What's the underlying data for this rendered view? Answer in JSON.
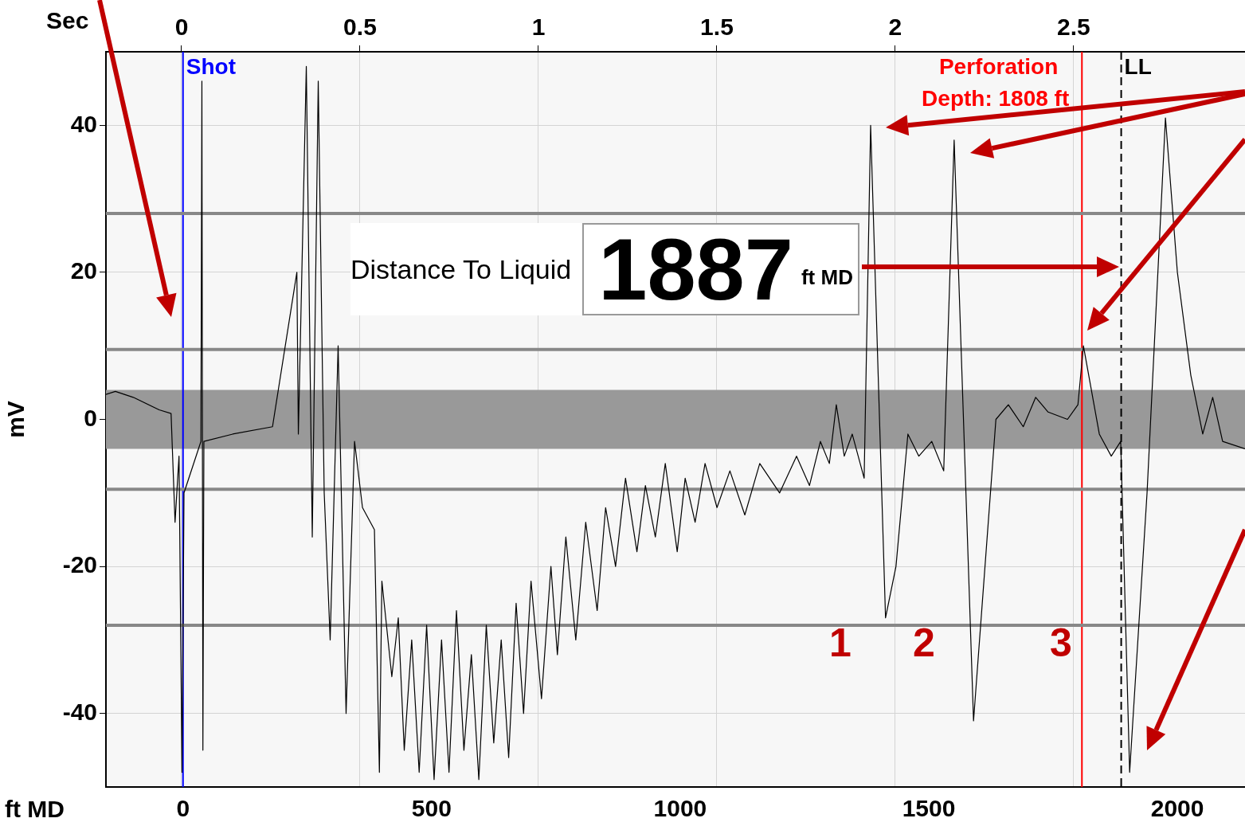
{
  "chart_data": {
    "type": "line",
    "xlabel": "ft MD",
    "ylabel": "mV",
    "x2label": "Sec",
    "xlim": [
      -155,
      2136
    ],
    "xticks": [
      0,
      500,
      1000,
      1500,
      2000
    ],
    "x2lim": [
      -0.212,
      2.98
    ],
    "x2ticks": [
      0,
      0.5,
      1,
      1.5,
      2,
      2.5
    ],
    "ylim": [
      -50,
      50
    ],
    "yticks": [
      -40,
      -20,
      0,
      20,
      40
    ],
    "grid": true,
    "legend": false,
    "marker": "none",
    "line_style": "solid",
    "series": [
      {
        "color": "#000000",
        "x": [
          -155,
          -136,
          -100,
          -48,
          -24,
          -16,
          -8,
          -2,
          2,
          36,
          38,
          40,
          42,
          100,
          180,
          229,
          232,
          248,
          260,
          272,
          284,
          296,
          312,
          328,
          345,
          361,
          385,
          395,
          400,
          420,
          433,
          445,
          460,
          475,
          490,
          505,
          520,
          535,
          550,
          565,
          580,
          595,
          610,
          625,
          640,
          655,
          670,
          685,
          700,
          721,
          740,
          753,
          770,
          790,
          810,
          833,
          850,
          870,
          890,
          913,
          930,
          950,
          970,
          994,
          1010,
          1030,
          1050,
          1074,
          1100,
          1130,
          1160,
          1200,
          1234,
          1260,
          1282,
          1300,
          1314,
          1330,
          1346,
          1370,
          1383,
          1413,
          1434,
          1458,
          1480,
          1506,
          1530,
          1551,
          1590,
          1635,
          1660,
          1690,
          1715,
          1740,
          1779,
          1800,
          1811,
          1843,
          1867,
          1886,
          1904,
          1939,
          1976,
          2000,
          2027,
          2051,
          2071,
          2091,
          2136
        ],
        "values": [
          3.4,
          3.8,
          3,
          1.3,
          0.8,
          -14,
          -5,
          -48,
          -10,
          -3,
          46,
          -45,
          -3,
          -2,
          -1,
          20,
          -2,
          48,
          -16,
          46,
          -10,
          -30,
          10,
          -40,
          -3,
          -12,
          -15,
          -48,
          -22,
          -35,
          -27,
          -45,
          -30,
          -48,
          -28,
          -49,
          -30,
          -48,
          -26,
          -45,
          -32,
          -49,
          -28,
          -44,
          -30,
          -46,
          -25,
          -40,
          -22,
          -38,
          -20,
          -32,
          -16,
          -30,
          -14,
          -26,
          -12,
          -20,
          -8,
          -18,
          -9,
          -16,
          -6,
          -18,
          -8,
          -14,
          -6,
          -12,
          -7,
          -13,
          -6,
          -10,
          -5,
          -9,
          -3,
          -6,
          2,
          -5,
          -2,
          -8,
          40,
          -27,
          -20,
          -2,
          -5,
          -3,
          -7,
          38,
          -41,
          0,
          2,
          -1,
          3,
          1,
          0,
          2,
          10,
          -2,
          -5,
          -3,
          -48,
          -10,
          41,
          20,
          6,
          -2,
          3,
          -3,
          -4
        ]
      }
    ],
    "ref_lines": [
      {
        "axis": "x",
        "value": 0,
        "label": "Shot",
        "color": "#0000ff"
      },
      {
        "axis": "x",
        "value": 1808,
        "label": "Perforation Depth: 1808 ft",
        "color": "#ff0000"
      },
      {
        "axis": "x",
        "value": 1887,
        "label": "LL",
        "color": "#000000",
        "line_style": "dashed"
      },
      {
        "axis": "y",
        "value": 28,
        "color": "#888888"
      },
      {
        "axis": "y",
        "value": 9.5,
        "color": "#888888"
      },
      {
        "axis": "y",
        "value": -9.5,
        "color": "#888888"
      },
      {
        "axis": "y",
        "value": -28,
        "color": "#888888"
      }
    ],
    "bands": [
      {
        "axis": "y",
        "from": -4,
        "to": 4,
        "color": "#999999"
      }
    ],
    "annotations": [
      "Distance To Liquid",
      "1887",
      "ft MD",
      "1",
      "2",
      "3"
    ]
  }
}
